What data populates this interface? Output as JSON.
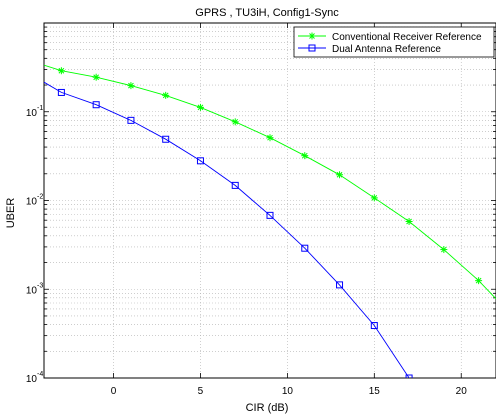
{
  "chart_data": {
    "type": "line",
    "title": "GPRS , TU3iH, Config1-Sync",
    "xlabel": "CIR (dB)",
    "ylabel": "UBER",
    "xlim": [
      -4,
      22
    ],
    "ylim": [
      0.0001,
      1
    ],
    "yscale": "log",
    "grid": true,
    "legend_position": "top-right",
    "x_ticks": [
      0,
      5,
      10,
      15,
      20
    ],
    "y_tick_labels": [
      {
        "value": 0.1,
        "base": "10",
        "exp": "-1"
      },
      {
        "value": 0.01,
        "base": "10",
        "exp": "-2"
      },
      {
        "value": 0.001,
        "base": "10",
        "exp": "-3"
      },
      {
        "value": 0.0001,
        "base": "10",
        "exp": "-4"
      }
    ],
    "series": [
      {
        "name": "Conventional Receiver Reference",
        "color": "#00ff00",
        "marker": "star",
        "x": [
          -4,
          -3,
          -1,
          1,
          3,
          5,
          7,
          9,
          11,
          13,
          15,
          17,
          19,
          21,
          22
        ],
        "y": [
          0.335,
          0.29,
          0.245,
          0.197,
          0.153,
          0.112,
          0.077,
          0.051,
          0.032,
          0.0195,
          0.0107,
          0.0058,
          0.0028,
          0.00125,
          0.00078
        ]
      },
      {
        "name": "Dual Antenna Reference",
        "color": "#0000ff",
        "marker": "square",
        "x": [
          -4,
          -3,
          -1,
          1,
          3,
          5,
          7,
          9,
          11,
          13,
          15,
          17,
          17.5
        ],
        "y": [
          0.215,
          0.165,
          0.12,
          0.08,
          0.049,
          0.028,
          0.0148,
          0.0068,
          0.0029,
          0.00112,
          0.00039,
          0.0001,
          7.5e-05
        ]
      }
    ]
  }
}
